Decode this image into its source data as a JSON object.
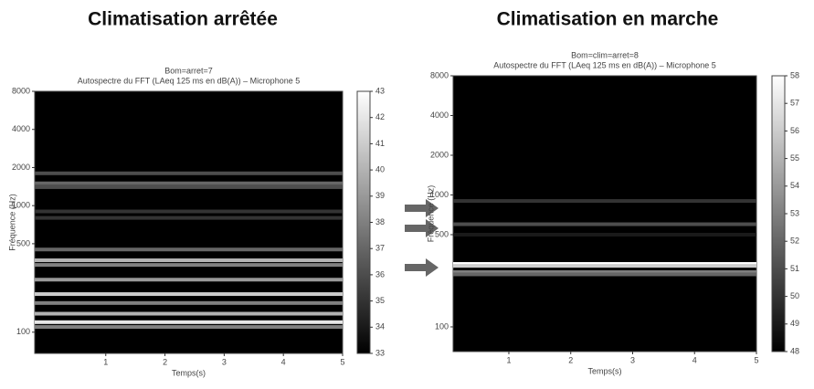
{
  "chart_data": [
    {
      "type": "heatmap",
      "title": "Climatisation arrêtée",
      "subtitle": [
        "Bom=arret=7",
        "Autospectre du FFT (LAeq 125 ms en dB(A)) – Microphone 5"
      ],
      "xlabel": "Temps(s)",
      "ylabel": "Fréquence (Hz)",
      "xlim": [
        -0.2,
        5
      ],
      "xticks": [
        1,
        2,
        3,
        4,
        5
      ],
      "ylim": [
        68,
        8000
      ],
      "yticks": [
        100,
        500,
        1000,
        2000,
        4000,
        8000
      ],
      "yscale": "log",
      "clim": [
        33,
        43
      ],
      "cticks": [
        33,
        34,
        35,
        36,
        37,
        38,
        39,
        40,
        41,
        42,
        43
      ],
      "bands": {
        "freq": [
          1800,
          1500,
          1400,
          900,
          800,
          450,
          370,
          340,
          260,
          200,
          170,
          140,
          120,
          110
        ],
        "values": [
          36,
          37,
          36,
          35,
          35,
          37,
          40,
          38,
          39,
          41,
          38,
          40,
          42,
          38
        ]
      }
    },
    {
      "type": "heatmap",
      "title": "Climatisation en marche",
      "subtitle": [
        "Bom=clim=arret=8",
        "Autospectre du FFT (LAeq 125 ms en dB(A)) – Microphone 5"
      ],
      "xlabel": "Temps(s)",
      "ylabel": "Fréquence (Hz)",
      "xlim": [
        0.1,
        5
      ],
      "xticks": [
        1,
        2,
        3,
        4,
        5
      ],
      "ylim": [
        65,
        8000
      ],
      "yticks": [
        100,
        500,
        1000,
        2000,
        4000,
        8000
      ],
      "yscale": "log",
      "clim": [
        48,
        58
      ],
      "cticks": [
        48,
        49,
        50,
        51,
        52,
        53,
        54,
        55,
        56,
        57,
        58
      ],
      "bands": {
        "freq": [
          900,
          600,
          500,
          300,
          290,
          260,
          250
        ],
        "values": [
          50,
          51,
          49,
          58,
          56,
          53,
          52
        ]
      }
    }
  ]
}
